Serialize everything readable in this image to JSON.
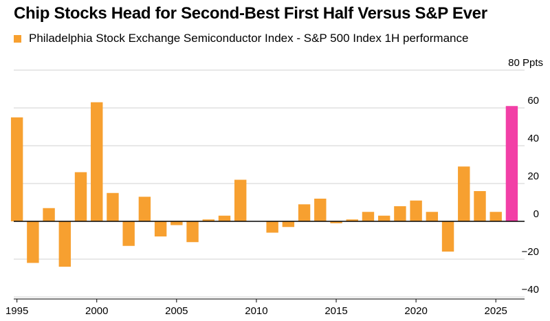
{
  "title": "Chip Stocks Head for Second-Best First Half Versus S&P Ever",
  "colors": {
    "bar": "#f7a030",
    "highlight": "#f23fa6",
    "grid": "#d0d0d0",
    "axis": "#000000"
  },
  "legend_icon": "square-swatch",
  "chart_data": {
    "type": "bar",
    "series": [
      {
        "name": "Philadelphia Stock Exchange Semiconductor Index - S&P 500 Index 1H performance",
        "x": [
          1995,
          1996,
          1997,
          1998,
          1999,
          2000,
          2001,
          2002,
          2003,
          2004,
          2005,
          2006,
          2007,
          2008,
          2009,
          2010,
          2011,
          2012,
          2013,
          2014,
          2015,
          2016,
          2017,
          2018,
          2019,
          2020,
          2021,
          2022,
          2023,
          2024,
          2025,
          2026
        ],
        "values": [
          55,
          -22,
          7,
          -24,
          26,
          63,
          15,
          -13,
          13,
          -8,
          -2,
          -11,
          1,
          3,
          22,
          0,
          -6,
          -3,
          9,
          12,
          -1,
          1,
          5,
          3,
          8,
          11,
          5,
          -16,
          29,
          16,
          5,
          61
        ]
      }
    ],
    "highlight_index": 31,
    "y_unit_label": "80 Ppts",
    "y_ticks": [
      60,
      40,
      20,
      0,
      -20,
      -40
    ],
    "ylim": [
      -42,
      80
    ],
    "x_ticks": [
      1995,
      2000,
      2005,
      2010,
      2015,
      2020,
      2025
    ],
    "xlim": [
      1994.8,
      2026.8
    ],
    "grid": "horizontal",
    "legend_position": "top-left"
  }
}
